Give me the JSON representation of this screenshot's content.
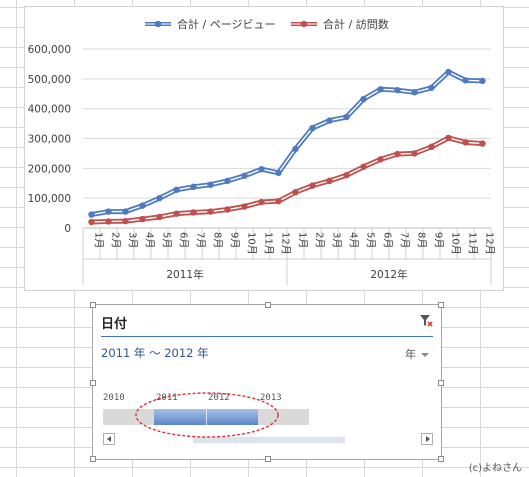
{
  "chart_data": {
    "type": "line",
    "legend_position": "top",
    "series": [
      {
        "name": "合計 / ページビュー",
        "color": "#4f7ac0",
        "values": [
          45000,
          55000,
          55000,
          75000,
          100000,
          128000,
          138000,
          145000,
          158000,
          175000,
          197000,
          185000,
          265000,
          335000,
          360000,
          372000,
          432000,
          465000,
          462000,
          455000,
          470000,
          523000,
          495000,
          493000
        ]
      },
      {
        "name": "合計 / 訪問数",
        "color": "#c0504d",
        "values": [
          20000,
          22000,
          23000,
          30000,
          37000,
          48000,
          52000,
          55000,
          62000,
          72000,
          87000,
          90000,
          120000,
          142000,
          158000,
          177000,
          205000,
          230000,
          248000,
          250000,
          272000,
          302000,
          287000,
          283000
        ]
      }
    ],
    "months": [
      "1月",
      "2月",
      "3月",
      "4月",
      "5月",
      "6月",
      "7月",
      "8月",
      "9月",
      "10月",
      "11月",
      "12月",
      "1月",
      "2月",
      "3月",
      "4月",
      "5月",
      "6月",
      "7月",
      "8月",
      "9月",
      "10月",
      "11月",
      "12月"
    ],
    "years": [
      "2011年",
      "2012年"
    ],
    "y_ticks": [
      "0",
      "100,000",
      "200,000",
      "300,000",
      "400,000",
      "500,000",
      "600,000"
    ],
    "y_tick_values": [
      0,
      100000,
      200000,
      300000,
      400000,
      500000,
      600000
    ],
    "ylim": [
      0,
      600000
    ],
    "grid": true
  },
  "slicer": {
    "title": "日付",
    "range_text": "2011 年 ～ 2012 年",
    "level": "年",
    "timeline_years": [
      "2010",
      "2011",
      "2012",
      "2013"
    ],
    "selected_years": [
      "2011",
      "2012"
    ],
    "accent": "#4472c4"
  },
  "watermark": "(c)よねさん"
}
